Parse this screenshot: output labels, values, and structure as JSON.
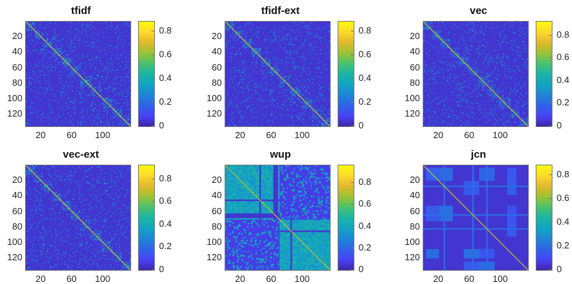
{
  "chart_data": [
    {
      "type": "heatmap",
      "title": "tfidf",
      "style": "sparse-blocks",
      "xticks": [
        "20",
        "60",
        "100"
      ],
      "yticks": [
        "20",
        "40",
        "60",
        "80",
        "100",
        "120"
      ],
      "colorbar": {
        "ticks": [
          "0",
          "0.2",
          "0.4",
          "0.6",
          "0.8"
        ],
        "max": 0.88
      },
      "matrix_size": 135
    },
    {
      "type": "heatmap",
      "title": "tfidf-ext",
      "style": "sparse-blocks",
      "xticks": [
        "20",
        "60",
        "100"
      ],
      "yticks": [
        "20",
        "40",
        "60",
        "80",
        "100",
        "120"
      ],
      "colorbar": {
        "ticks": [
          "0",
          "0.2",
          "0.4",
          "0.6",
          "0.8"
        ],
        "max": 0.88
      },
      "matrix_size": 135
    },
    {
      "type": "heatmap",
      "title": "vec",
      "style": "sparse-blocks",
      "xticks": [
        "20",
        "60",
        "100"
      ],
      "yticks": [
        "20",
        "40",
        "60",
        "80",
        "100",
        "120"
      ],
      "colorbar": {
        "ticks": [
          "0",
          "0.2",
          "0.4",
          "0.6",
          "0.8"
        ],
        "max": 0.92
      },
      "matrix_size": 135
    },
    {
      "type": "heatmap",
      "title": "vec-ext",
      "style": "sparse-blocks",
      "xticks": [
        "20",
        "60",
        "100"
      ],
      "yticks": [
        "20",
        "40",
        "60",
        "80",
        "100",
        "120"
      ],
      "colorbar": {
        "ticks": [
          "0",
          "0.2",
          "0.4",
          "0.6",
          "0.8"
        ],
        "max": 0.92
      },
      "matrix_size": 135
    },
    {
      "type": "heatmap",
      "title": "wup",
      "style": "dense",
      "xticks": [
        "20",
        "60",
        "100"
      ],
      "yticks": [
        "20",
        "40",
        "60",
        "80",
        "100",
        "120"
      ],
      "colorbar": {
        "ticks": [
          "0",
          "0.2",
          "0.4",
          "0.6",
          "0.8"
        ],
        "max": 0.96
      },
      "matrix_size": 135
    },
    {
      "type": "heatmap",
      "title": "jcn",
      "style": "block-grid",
      "xticks": [
        "20",
        "60",
        "100"
      ],
      "yticks": [
        "20",
        "40",
        "60",
        "80",
        "100",
        "120"
      ],
      "colorbar": {
        "ticks": [
          "0",
          "0.2",
          "0.4",
          "0.6",
          "0.8"
        ],
        "max": 0.88
      },
      "matrix_size": 135
    }
  ],
  "colormap": [
    "#3e26a8",
    "#4743f8",
    "#2f64e7",
    "#1f85d7",
    "#12a4c2",
    "#1ab5a6",
    "#4ac16d",
    "#9ac334",
    "#e1b82d",
    "#fcd92b",
    "#f9fb0e"
  ]
}
